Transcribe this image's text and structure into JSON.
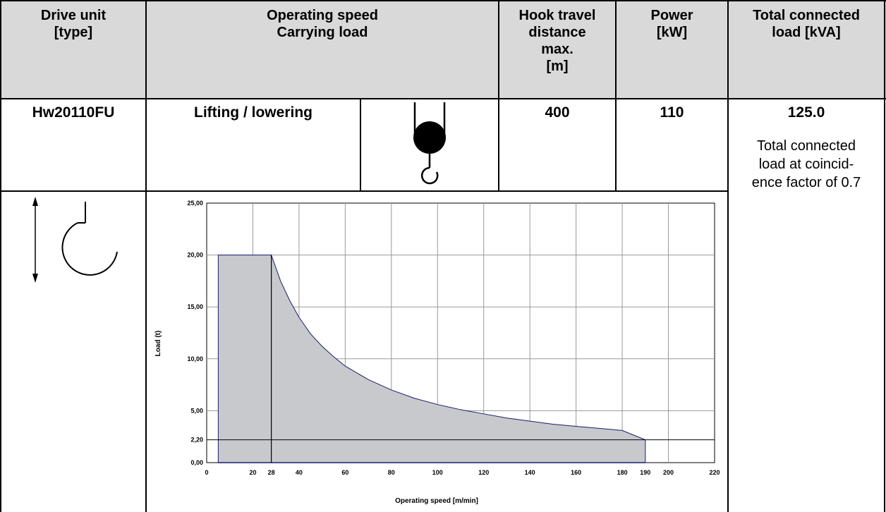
{
  "table": {
    "headers": {
      "drive_unit": [
        "Drive unit",
        "[type]"
      ],
      "operating_speed": [
        "Operating speed",
        "Carrying load"
      ],
      "hook_travel": [
        "Hook travel",
        "distance",
        "max.",
        "[m]"
      ],
      "power": [
        "Power",
        "[kW]"
      ],
      "total_load": [
        "Total connected",
        "load [kVA]"
      ]
    },
    "row": {
      "drive_unit": "Hw20110FU",
      "motion": "Lifting / lowering",
      "hook_travel": "400",
      "power": "110",
      "total_load": "125.0",
      "note": [
        "Total connected",
        "load at coincid-",
        "ence factor of 0.7"
      ]
    }
  },
  "chart_data": {
    "type": "area",
    "xlabel": "Operating speed  [m/min]",
    "ylabel": "Load (t)",
    "xlim": [
      0,
      220
    ],
    "ylim": [
      0,
      25
    ],
    "x_ticks": [
      "0",
      "20",
      "28",
      "40",
      "60",
      "80",
      "100",
      "120",
      "140",
      "160",
      "180",
      "190",
      "200",
      "220"
    ],
    "y_ticks": [
      "25,00",
      "20,00",
      "15,00",
      "10,00",
      "5,00",
      "2,20",
      "0,00"
    ],
    "grid": true,
    "series": [
      {
        "x": [
          5,
          28,
          32,
          36,
          40,
          45,
          50,
          55,
          60,
          70,
          80,
          90,
          100,
          110,
          120,
          130,
          140,
          150,
          160,
          170,
          180,
          190
        ],
        "y": [
          20,
          20,
          17.5,
          15.6,
          14.0,
          12.4,
          11.2,
          10.2,
          9.3,
          8.0,
          7.0,
          6.2,
          5.6,
          5.1,
          4.7,
          4.3,
          4.0,
          3.7,
          3.5,
          3.3,
          3.1,
          2.2
        ]
      }
    ],
    "reference_lines": {
      "x": 28,
      "y": 2.2
    },
    "fill_color": "#c8c9cd",
    "line_color": "#1b1b6e"
  }
}
